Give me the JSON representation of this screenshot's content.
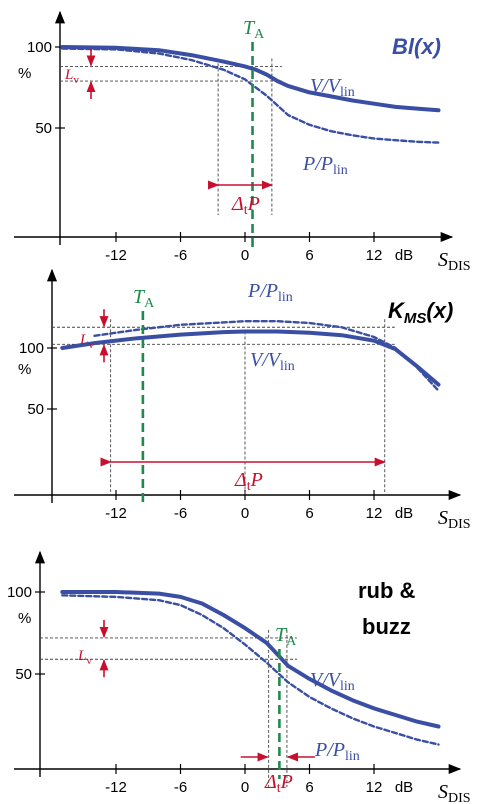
{
  "colors": {
    "curve": "#3a4fa3",
    "red": "#c8102e",
    "green": "#1f8a4c",
    "axis": "#000000",
    "guide": "#555555"
  },
  "chart_data": [
    {
      "type": "line",
      "title": "Bl(x)",
      "title_parts": [
        "Bl(",
        "x",
        ")"
      ],
      "x_unit": "dB",
      "x_ticks": [
        -12,
        -6,
        0,
        6,
        12
      ],
      "x_tick_labels": [
        "-12",
        "-6",
        "0",
        "6",
        "12"
      ],
      "y_ticks": [
        100,
        50
      ],
      "y_tick_labels": [
        "100",
        "50"
      ],
      "y_unit": "%",
      "xlim": [
        -17,
        20
      ],
      "ylim": [
        0,
        115
      ],
      "axis_label": {
        "base": "S",
        "sub": "DIS"
      },
      "ta": {
        "x": 0.7,
        "label_base": "T",
        "label_sub": "A"
      },
      "series": [
        {
          "name": "V/V_lin",
          "label_base": "V/V",
          "label_sub": "lin",
          "style": "solid",
          "x": [
            -17,
            -12,
            -8,
            -5,
            -2,
            0,
            1,
            2,
            3,
            4,
            6,
            8,
            10,
            12,
            14,
            16,
            18
          ],
          "y": [
            100,
            99.5,
            98,
            95,
            91,
            88,
            86,
            83,
            79,
            76,
            72,
            69.5,
            67,
            65,
            63,
            62,
            61
          ]
        },
        {
          "name": "P/P_lin",
          "label_base": "P/P",
          "label_sub": "lin",
          "style": "dashed",
          "x": [
            -17,
            -12,
            -8,
            -5,
            -2,
            0,
            1,
            2,
            3,
            4,
            6,
            8,
            10,
            12,
            14,
            16,
            18
          ],
          "y": [
            99,
            98.5,
            96,
            92,
            86,
            80,
            75,
            70,
            64,
            58,
            52,
            48,
            45.5,
            43.5,
            42.5,
            41.5,
            41
          ]
        }
      ],
      "lv": {
        "y_top": 88,
        "y_bottom": 79,
        "label_base": "L",
        "label_sub": "v"
      },
      "delta": {
        "x1": -2.5,
        "x2": 2.5,
        "label_base": "Δ",
        "label_sub": "t",
        "label_end": "P"
      }
    },
    {
      "type": "line",
      "title": "KMS(x)",
      "title_parts": [
        "K",
        "MS",
        "(",
        "x",
        ")"
      ],
      "x_unit": "dB",
      "x_ticks": [
        -12,
        -6,
        0,
        6,
        12
      ],
      "x_tick_labels": [
        "-12",
        "-6",
        "0",
        "6",
        "12"
      ],
      "y_ticks": [
        100,
        50
      ],
      "y_tick_labels": [
        "100",
        "50"
      ],
      "y_unit": "%",
      "xlim": [
        -17,
        20
      ],
      "ylim": [
        0,
        135
      ],
      "axis_label": {
        "base": "S",
        "sub": "DIS"
      },
      "ta": {
        "x": -9.5,
        "label_base": "T",
        "label_sub": "A"
      },
      "series": [
        {
          "name": "V/V_lin",
          "label_base": "V/V",
          "label_sub": "lin",
          "style": "solid",
          "x": [
            -17,
            -14,
            -10,
            -6,
            -2,
            0,
            3,
            6,
            9,
            12,
            14,
            16,
            18
          ],
          "y": [
            100,
            104,
            108,
            111,
            113,
            113.5,
            113.5,
            112.5,
            110.5,
            106,
            99,
            85,
            70
          ]
        },
        {
          "name": "P/P_lin",
          "label_base": "P/P",
          "label_sub": "lin",
          "style": "dashed",
          "x": [
            -14,
            -10,
            -6,
            -2,
            0,
            3,
            6,
            9,
            12,
            14,
            16,
            18
          ],
          "y": [
            110,
            115,
            119,
            121,
            122,
            122,
            120.5,
            117,
            109,
            100,
            84,
            65
          ]
        }
      ],
      "lv": {
        "y_top": 117,
        "y_bottom": 103,
        "label_base": "L",
        "label_sub": "v"
      },
      "delta": {
        "x1": -12.5,
        "x2": 13,
        "label_base": "Δ",
        "label_sub": "t",
        "label_end": "P"
      }
    },
    {
      "type": "line",
      "title": "rub & buzz",
      "title_lines": [
        "rub &",
        "buzz"
      ],
      "x_unit": "dB",
      "x_ticks": [
        -12,
        -6,
        0,
        6,
        12
      ],
      "x_tick_labels": [
        "-12",
        "-6",
        "0",
        "6",
        "12"
      ],
      "y_ticks": [
        100,
        50
      ],
      "y_tick_labels": [
        "100",
        "50"
      ],
      "y_unit": "%",
      "xlim": [
        -17,
        20
      ],
      "ylim": [
        0,
        115
      ],
      "axis_label": {
        "base": "S",
        "sub": "DIS"
      },
      "ta": {
        "x": 3.2,
        "label_base": "T",
        "label_sub": "A"
      },
      "series": [
        {
          "name": "V/V_lin",
          "label_base": "V/V",
          "label_sub": "lin",
          "style": "solid",
          "x": [
            -17,
            -12,
            -8,
            -6,
            -4,
            -2,
            0,
            2,
            3,
            4,
            6,
            8,
            10,
            12,
            14,
            16,
            18
          ],
          "y": [
            100,
            100,
            99,
            97,
            93,
            86,
            78,
            69,
            62,
            55,
            47,
            40,
            34,
            29,
            25,
            21,
            18
          ]
        },
        {
          "name": "P/P_lin",
          "label_base": "P/P",
          "label_sub": "lin",
          "style": "dashed",
          "x": [
            -17,
            -12,
            -8,
            -6,
            -4,
            -2,
            0,
            2,
            3,
            4,
            6,
            8,
            10,
            12,
            14,
            16,
            18
          ],
          "y": [
            98,
            97,
            95,
            92,
            86,
            78,
            68,
            57,
            51,
            45,
            36,
            29,
            23,
            18,
            14,
            10,
            7
          ]
        }
      ],
      "lv": {
        "y_top": 72,
        "y_bottom": 59,
        "label_base": "L",
        "label_sub": "v"
      },
      "delta": {
        "x1": 2.2,
        "x2": 3.9,
        "label_base": "Δ",
        "label_sub": "t",
        "label_end": "P"
      }
    }
  ]
}
